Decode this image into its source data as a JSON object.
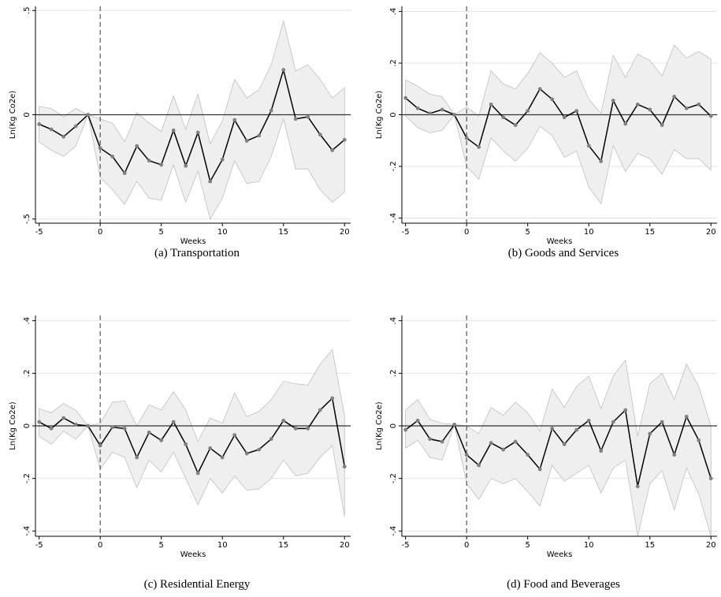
{
  "chart_data": [
    {
      "type": "line",
      "caption": "(a)  Transportation",
      "xlabel": "Weeks",
      "ylabel": "Ln(Kg Co2e)",
      "x": [
        -5,
        -4,
        -3,
        -2,
        -1,
        0,
        1,
        2,
        3,
        4,
        5,
        6,
        7,
        8,
        9,
        10,
        11,
        12,
        13,
        14,
        15,
        16,
        17,
        18,
        19,
        20
      ],
      "values": [
        -0.045,
        -0.07,
        -0.105,
        -0.055,
        0,
        -0.16,
        -0.2,
        -0.28,
        -0.15,
        -0.22,
        -0.24,
        -0.075,
        -0.245,
        -0.085,
        -0.32,
        -0.215,
        -0.025,
        -0.125,
        -0.1,
        0.02,
        0.215,
        -0.02,
        -0.01,
        -0.095,
        -0.17,
        -0.12
      ],
      "ci_upper": [
        0.04,
        0.03,
        -0.01,
        0.03,
        0,
        -0.02,
        -0.04,
        -0.13,
        0.01,
        -0.04,
        -0.08,
        0.09,
        -0.07,
        0.1,
        -0.14,
        -0.03,
        0.17,
        0.08,
        0.12,
        0.24,
        0.45,
        0.21,
        0.24,
        0.17,
        0.08,
        0.13
      ],
      "ci_lower": [
        -0.13,
        -0.17,
        -0.2,
        -0.15,
        0,
        -0.3,
        -0.36,
        -0.43,
        -0.32,
        -0.4,
        -0.41,
        -0.24,
        -0.42,
        -0.27,
        -0.5,
        -0.4,
        -0.22,
        -0.33,
        -0.32,
        -0.2,
        -0.02,
        -0.26,
        -0.26,
        -0.36,
        -0.42,
        -0.37
      ],
      "xlim": [
        -5.3,
        20.5
      ],
      "xticks": [
        -5,
        0,
        5,
        10,
        15,
        20
      ],
      "ylim": [
        -0.52,
        0.52
      ],
      "yticks": [
        {
          "value": -0.5,
          "label": "-.5"
        },
        0,
        {
          "value": 0.5,
          "label": ".5"
        }
      ],
      "grid": true,
      "hline": 0,
      "vline": 0,
      "color": "#000000",
      "marker_color": "#808080",
      "band_color": "#efefef"
    },
    {
      "type": "line",
      "caption": "(b)  Goods and Services",
      "xlabel": "Weeks",
      "ylabel": "Ln(Kg Co2e)",
      "x": [
        -5,
        -4,
        -3,
        -2,
        -1,
        0,
        1,
        2,
        3,
        4,
        5,
        6,
        7,
        8,
        9,
        10,
        11,
        12,
        13,
        14,
        15,
        16,
        17,
        18,
        19,
        20
      ],
      "values": [
        0.065,
        0.025,
        0.005,
        0.02,
        0,
        -0.09,
        -0.125,
        0.04,
        -0.01,
        -0.04,
        0.015,
        0.1,
        0.06,
        -0.01,
        0.015,
        -0.12,
        -0.18,
        0.055,
        -0.035,
        0.04,
        0.02,
        -0.04,
        0.07,
        0.025,
        0.04,
        -0.005
      ],
      "ci_upper": [
        0.135,
        0.11,
        0.08,
        0.07,
        0,
        0.03,
        -0.005,
        0.17,
        0.12,
        0.1,
        0.16,
        0.24,
        0.2,
        0.145,
        0.17,
        0.06,
        0.005,
        0.23,
        0.145,
        0.235,
        0.21,
        0.15,
        0.27,
        0.22,
        0.245,
        0.215
      ],
      "ci_lower": [
        -0.005,
        -0.05,
        -0.07,
        -0.06,
        0,
        -0.2,
        -0.25,
        -0.09,
        -0.14,
        -0.18,
        -0.13,
        -0.045,
        -0.08,
        -0.165,
        -0.14,
        -0.28,
        -0.345,
        -0.12,
        -0.22,
        -0.15,
        -0.17,
        -0.23,
        -0.135,
        -0.17,
        -0.17,
        -0.215
      ],
      "xlim": [
        -5.3,
        20.5
      ],
      "xticks": [
        -5,
        0,
        5,
        10,
        15,
        20
      ],
      "ylim": [
        -0.42,
        0.42
      ],
      "yticks": [
        {
          "value": -0.4,
          "label": "-.4"
        },
        {
          "value": -0.2,
          "label": "-.2"
        },
        0,
        {
          "value": 0.2,
          "label": ".2"
        },
        {
          "value": 0.4,
          "label": ".4"
        }
      ],
      "grid": true,
      "hline": 0,
      "vline": 0,
      "color": "#000000",
      "marker_color": "#808080",
      "band_color": "#efefef"
    },
    {
      "type": "line",
      "caption": "(c)  Residential Energy",
      "xlabel": "Weeks",
      "ylabel": "Ln(Kg Co2e)",
      "x": [
        -5,
        -4,
        -3,
        -2,
        -1,
        0,
        1,
        2,
        3,
        4,
        5,
        6,
        7,
        8,
        9,
        10,
        11,
        12,
        13,
        14,
        15,
        16,
        17,
        18,
        19,
        20
      ],
      "values": [
        0.015,
        -0.01,
        0.03,
        0.005,
        0,
        -0.075,
        -0.005,
        -0.01,
        -0.12,
        -0.025,
        -0.055,
        0.015,
        -0.07,
        -0.18,
        -0.085,
        -0.12,
        -0.035,
        -0.105,
        -0.09,
        -0.05,
        0.02,
        -0.01,
        -0.01,
        0.06,
        0.105,
        -0.155
      ],
      "ci_upper": [
        0.065,
        0.05,
        0.085,
        0.06,
        0,
        0.01,
        0.09,
        0.095,
        0,
        0.08,
        0.06,
        0.13,
        0.06,
        -0.06,
        0.03,
        0.01,
        0.125,
        0.035,
        0.055,
        0.1,
        0.17,
        0.16,
        0.155,
        0.235,
        0.29,
        0.04
      ],
      "ci_lower": [
        -0.04,
        -0.07,
        -0.02,
        -0.05,
        0,
        -0.165,
        -0.1,
        -0.12,
        -0.235,
        -0.13,
        -0.175,
        -0.1,
        -0.2,
        -0.3,
        -0.2,
        -0.255,
        -0.19,
        -0.245,
        -0.24,
        -0.2,
        -0.13,
        -0.19,
        -0.18,
        -0.12,
        -0.075,
        -0.345
      ],
      "xlim": [
        -5.3,
        20.5
      ],
      "xticks": [
        -5,
        0,
        5,
        10,
        15,
        20
      ],
      "ylim": [
        -0.42,
        0.42
      ],
      "yticks": [
        {
          "value": -0.4,
          "label": "-.4"
        },
        {
          "value": -0.2,
          "label": "-.2"
        },
        0,
        {
          "value": 0.2,
          "label": ".2"
        },
        {
          "value": 0.4,
          "label": ".4"
        }
      ],
      "grid": true,
      "hline": 0,
      "vline": 0,
      "color": "#000000",
      "marker_color": "#808080",
      "band_color": "#efefef"
    },
    {
      "type": "line",
      "caption": "(d)  Food and Beverages",
      "xlabel": "Weeks",
      "ylabel": "Ln(Kg Co2e)",
      "x": [
        -5,
        -4,
        -3,
        -2,
        -1,
        0,
        1,
        2,
        3,
        4,
        5,
        6,
        7,
        8,
        9,
        10,
        11,
        12,
        13,
        14,
        15,
        16,
        17,
        18,
        19,
        20
      ],
      "values": [
        -0.015,
        0.02,
        -0.05,
        -0.06,
        0.005,
        -0.11,
        -0.15,
        -0.065,
        -0.09,
        -0.06,
        -0.11,
        -0.165,
        -0.01,
        -0.07,
        -0.015,
        0.02,
        -0.095,
        0.015,
        0.06,
        -0.23,
        -0.03,
        0.015,
        -0.11,
        0.035,
        -0.055,
        -0.2
      ],
      "ci_upper": [
        0.06,
        0.1,
        0.025,
        0.01,
        0.005,
        0,
        -0.03,
        0.07,
        0.04,
        0.09,
        0.05,
        -0.02,
        0.14,
        0.07,
        0.15,
        0.19,
        0.065,
        0.19,
        0.25,
        -0.04,
        0.16,
        0.2,
        0.1,
        0.235,
        0.15,
        0
      ],
      "ci_lower": [
        -0.085,
        -0.055,
        -0.12,
        -0.13,
        0.005,
        -0.22,
        -0.28,
        -0.2,
        -0.22,
        -0.2,
        -0.25,
        -0.305,
        -0.15,
        -0.21,
        -0.18,
        -0.15,
        -0.255,
        -0.16,
        -0.13,
        -0.42,
        -0.22,
        -0.17,
        -0.32,
        -0.16,
        -0.26,
        -0.42
      ],
      "xlim": [
        -5.3,
        20.5
      ],
      "xticks": [
        -5,
        0,
        5,
        10,
        15,
        20
      ],
      "ylim": [
        -0.42,
        0.42
      ],
      "yticks": [
        {
          "value": -0.4,
          "label": "-.4"
        },
        {
          "value": -0.2,
          "label": "-.2"
        },
        0,
        {
          "value": 0.2,
          "label": ".2"
        },
        {
          "value": 0.4,
          "label": ".4"
        }
      ],
      "grid": true,
      "hline": 0,
      "vline": 0,
      "color": "#000000",
      "marker_color": "#808080",
      "band_color": "#efefef"
    }
  ]
}
